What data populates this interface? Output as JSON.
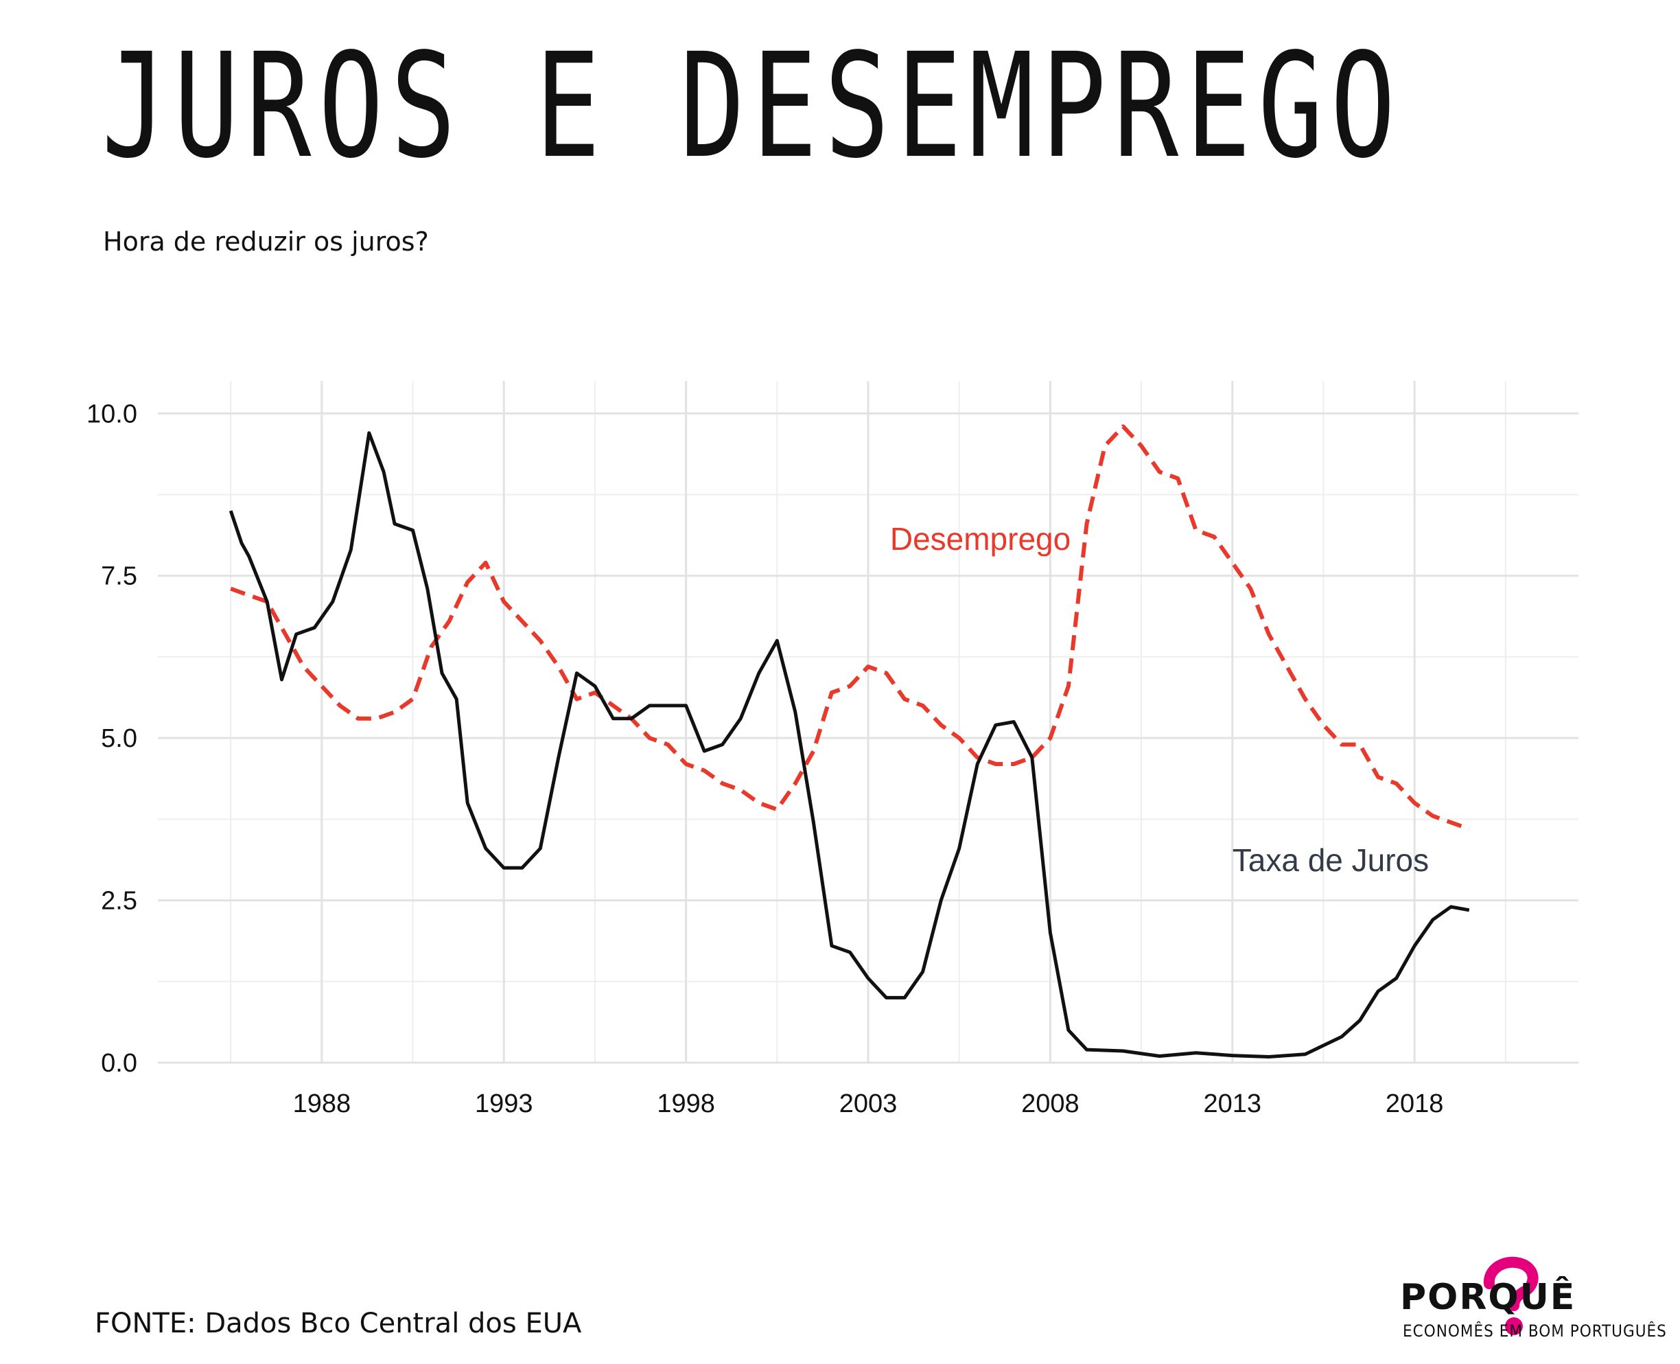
{
  "header": {
    "title": "JUROS E DESEMPREGO",
    "subtitle": "Hora de reduzir os juros?"
  },
  "footer": {
    "source": "FONTE: Dados Bco Central dos EUA",
    "logo_name": "PORQUÊ",
    "logo_tagline": "ECONOMÊS EM BOM PORTUGUÊS",
    "logo_icon": "question-mark-piggy-icon",
    "logo_color": "#e4007c"
  },
  "chart_data": {
    "type": "line",
    "xlim": [
      1983.5,
      2022.5
    ],
    "ylim": [
      0,
      10.5
    ],
    "x_ticks": [
      1988,
      1993,
      1998,
      2003,
      2008,
      2013,
      2018
    ],
    "x_tick_labels": [
      "1988",
      "1993",
      "1998",
      "2003",
      "2008",
      "2013",
      "2018"
    ],
    "y_ticks": [
      0,
      2.5,
      5,
      7.5,
      10
    ],
    "y_tick_labels": [
      "0.0",
      "2.5",
      "5.0",
      "7.5",
      "10.0"
    ],
    "grid": true,
    "series": [
      {
        "name": "Desemprego",
        "color": "#e8392b",
        "style": "dashed",
        "points": [
          [
            1985.5,
            7.3
          ],
          [
            1986.0,
            7.2
          ],
          [
            1986.5,
            7.1
          ],
          [
            1987.0,
            6.6
          ],
          [
            1987.5,
            6.1
          ],
          [
            1988.0,
            5.8
          ],
          [
            1988.5,
            5.5
          ],
          [
            1989.0,
            5.3
          ],
          [
            1989.5,
            5.3
          ],
          [
            1990.0,
            5.4
          ],
          [
            1990.5,
            5.6
          ],
          [
            1991.0,
            6.4
          ],
          [
            1991.5,
            6.8
          ],
          [
            1992.0,
            7.4
          ],
          [
            1992.5,
            7.7
          ],
          [
            1993.0,
            7.1
          ],
          [
            1993.5,
            6.8
          ],
          [
            1994.0,
            6.5
          ],
          [
            1994.5,
            6.1
          ],
          [
            1995.0,
            5.6
          ],
          [
            1995.5,
            5.7
          ],
          [
            1996.0,
            5.5
          ],
          [
            1996.5,
            5.3
          ],
          [
            1997.0,
            5.0
          ],
          [
            1997.5,
            4.9
          ],
          [
            1998.0,
            4.6
          ],
          [
            1998.5,
            4.5
          ],
          [
            1999.0,
            4.3
          ],
          [
            1999.5,
            4.2
          ],
          [
            2000.0,
            4.0
          ],
          [
            2000.5,
            3.9
          ],
          [
            2001.0,
            4.3
          ],
          [
            2001.5,
            4.8
          ],
          [
            2002.0,
            5.7
          ],
          [
            2002.5,
            5.8
          ],
          [
            2003.0,
            6.1
          ],
          [
            2003.5,
            6.0
          ],
          [
            2004.0,
            5.6
          ],
          [
            2004.5,
            5.5
          ],
          [
            2005.0,
            5.2
          ],
          [
            2005.5,
            5.0
          ],
          [
            2006.0,
            4.7
          ],
          [
            2006.5,
            4.6
          ],
          [
            2007.0,
            4.6
          ],
          [
            2007.5,
            4.7
          ],
          [
            2008.0,
            5.0
          ],
          [
            2008.5,
            5.8
          ],
          [
            2009.0,
            8.3
          ],
          [
            2009.5,
            9.5
          ],
          [
            2010.0,
            9.8
          ],
          [
            2010.5,
            9.5
          ],
          [
            2011.0,
            9.1
          ],
          [
            2011.5,
            9.0
          ],
          [
            2012.0,
            8.2
          ],
          [
            2012.5,
            8.1
          ],
          [
            2013.0,
            7.7
          ],
          [
            2013.5,
            7.3
          ],
          [
            2014.0,
            6.6
          ],
          [
            2014.5,
            6.1
          ],
          [
            2015.0,
            5.6
          ],
          [
            2015.5,
            5.2
          ],
          [
            2016.0,
            4.9
          ],
          [
            2016.5,
            4.9
          ],
          [
            2017.0,
            4.4
          ],
          [
            2017.5,
            4.3
          ],
          [
            2018.0,
            4.0
          ],
          [
            2018.5,
            3.8
          ],
          [
            2019.0,
            3.7
          ],
          [
            2019.5,
            3.6
          ]
        ]
      },
      {
        "name": "Taxa de Juros",
        "color": "#111111",
        "style": "solid",
        "points": [
          [
            1985.5,
            8.5
          ],
          [
            1985.8,
            8.0
          ],
          [
            1986.0,
            7.8
          ],
          [
            1986.5,
            7.1
          ],
          [
            1986.9,
            5.9
          ],
          [
            1987.3,
            6.6
          ],
          [
            1987.8,
            6.7
          ],
          [
            1988.3,
            7.1
          ],
          [
            1988.8,
            7.9
          ],
          [
            1989.3,
            9.7
          ],
          [
            1989.7,
            9.1
          ],
          [
            1990.0,
            8.3
          ],
          [
            1990.5,
            8.2
          ],
          [
            1990.9,
            7.3
          ],
          [
            1991.3,
            6.0
          ],
          [
            1991.7,
            5.6
          ],
          [
            1992.0,
            4.0
          ],
          [
            1992.5,
            3.3
          ],
          [
            1993.0,
            3.0
          ],
          [
            1993.5,
            3.0
          ],
          [
            1994.0,
            3.3
          ],
          [
            1994.5,
            4.7
          ],
          [
            1995.0,
            6.0
          ],
          [
            1995.5,
            5.8
          ],
          [
            1996.0,
            5.3
          ],
          [
            1996.5,
            5.3
          ],
          [
            1997.0,
            5.5
          ],
          [
            1997.5,
            5.5
          ],
          [
            1998.0,
            5.5
          ],
          [
            1998.5,
            4.8
          ],
          [
            1999.0,
            4.9
          ],
          [
            1999.5,
            5.3
          ],
          [
            2000.0,
            6.0
          ],
          [
            2000.5,
            6.5
          ],
          [
            2001.0,
            5.4
          ],
          [
            2001.5,
            3.7
          ],
          [
            2002.0,
            1.8
          ],
          [
            2002.5,
            1.7
          ],
          [
            2003.0,
            1.3
          ],
          [
            2003.5,
            1.0
          ],
          [
            2004.0,
            1.0
          ],
          [
            2004.5,
            1.4
          ],
          [
            2005.0,
            2.5
          ],
          [
            2005.5,
            3.3
          ],
          [
            2006.0,
            4.6
          ],
          [
            2006.5,
            5.2
          ],
          [
            2007.0,
            5.25
          ],
          [
            2007.5,
            4.7
          ],
          [
            2008.0,
            2.0
          ],
          [
            2008.5,
            0.5
          ],
          [
            2009.0,
            0.2
          ],
          [
            2010.0,
            0.18
          ],
          [
            2011.0,
            0.1
          ],
          [
            2012.0,
            0.15
          ],
          [
            2013.0,
            0.11
          ],
          [
            2014.0,
            0.09
          ],
          [
            2015.0,
            0.13
          ],
          [
            2016.0,
            0.4
          ],
          [
            2016.5,
            0.65
          ],
          [
            2017.0,
            1.1
          ],
          [
            2017.5,
            1.3
          ],
          [
            2018.0,
            1.8
          ],
          [
            2018.5,
            2.2
          ],
          [
            2019.0,
            2.4
          ],
          [
            2019.5,
            2.35
          ]
        ]
      }
    ],
    "annotations": [
      {
        "text": "Desemprego",
        "x": 2003.6,
        "y": 7.9,
        "color": "#e8392b"
      },
      {
        "text": "Taxa de Juros",
        "x": 2013.0,
        "y": 2.95,
        "color": "#333b48"
      }
    ]
  }
}
